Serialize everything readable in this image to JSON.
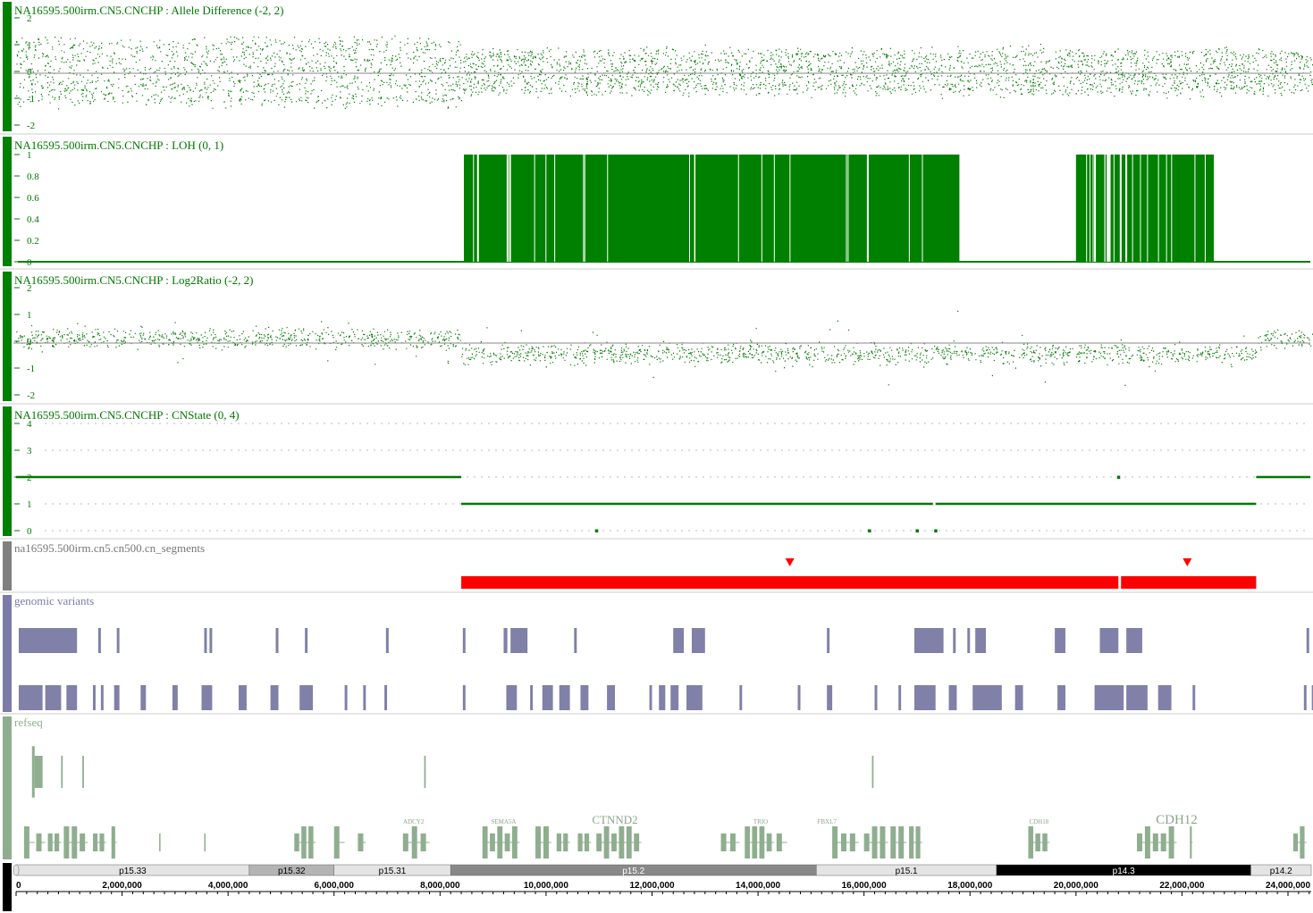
{
  "colors": {
    "data_green": "#007700",
    "bar_green": "#008000",
    "segment_red": "#ff0000",
    "variant_purple": "#8080a8",
    "refseq_green": "#8fae8f",
    "gutter_green": "#008000",
    "gutter_gray": "#808080",
    "gutter_purple": "#7b7ba8",
    "gutter_refseq": "#8fae8f"
  },
  "tracks": {
    "allele": {
      "title": "NA16595.500irm.CN5.CNCHP : Allele Difference (-2, 2)"
    },
    "loh": {
      "title": "NA16595.500irm.CN5.CNCHP : LOH (0, 1)"
    },
    "log2": {
      "title": "NA16595.500irm.CN5.CNCHP : Log2Ratio (-2, 2)"
    },
    "cnstate": {
      "title": "NA16595.500irm.CN5.CNCHP : CNState (0, 4)"
    },
    "segments": {
      "title": "na16595.500irm.cn5.cn500.cn_segments"
    },
    "variants": {
      "title": "genomic variants"
    },
    "refseq": {
      "title": "refseq"
    }
  },
  "chart_data": [
    {
      "type": "scatter",
      "title": "NA16595.500irm.CN5.CNCHP : Allele Difference (-2, 2)",
      "ylim": [
        -2,
        2
      ],
      "y_ticks": [
        "2",
        "1",
        "0",
        "-1",
        "-2"
      ],
      "reference_line": 0,
      "description_regions": [
        {
          "x_range": [
            0,
            8400000
          ],
          "bands": [
            1,
            0,
            -1
          ]
        },
        {
          "x_range": [
            8400000,
            24000000
          ],
          "bands": [
            0.6,
            -0.6
          ]
        }
      ]
    },
    {
      "type": "bar",
      "title": "NA16595.500irm.CN5.CNCHP : LOH (0, 1)",
      "ylim": [
        0,
        1
      ],
      "y_ticks": [
        "1",
        "0.8",
        "0.6",
        "0.4",
        "0.2",
        "0"
      ],
      "regions": [
        {
          "start": 8450000,
          "end": 17800000,
          "value": 1
        },
        {
          "start": 20000000,
          "end": 22600000,
          "value": 1
        }
      ]
    },
    {
      "type": "scatter",
      "title": "NA16595.500irm.CN5.CNCHP : Log2Ratio (-2, 2)",
      "ylim": [
        -2,
        2
      ],
      "y_ticks": [
        "2",
        "1",
        "0",
        "-1",
        "-2"
      ],
      "reference_line": 0,
      "description_regions": [
        {
          "x_range": [
            0,
            8400000
          ],
          "mean": 0.1
        },
        {
          "x_range": [
            8400000,
            23400000
          ],
          "mean": -0.45
        },
        {
          "x_range": [
            23400000,
            24500000
          ],
          "mean": 0.1
        }
      ]
    },
    {
      "type": "line",
      "title": "NA16595.500irm.CN5.CNCHP : CNState (0, 4)",
      "ylim": [
        0,
        4
      ],
      "y_ticks": [
        "4",
        "3",
        "2",
        "1",
        "0"
      ],
      "segments": [
        {
          "start": 0,
          "end": 8400000,
          "value": 2
        },
        {
          "start": 8400000,
          "end": 17300000,
          "value": 1
        },
        {
          "start": 17350000,
          "end": 23400000,
          "value": 1
        },
        {
          "start": 23400000,
          "end": 24500000,
          "value": 2
        }
      ],
      "isolated_points": [
        {
          "x": 20800000,
          "value": 2
        },
        {
          "x": 10950000,
          "value": 0
        },
        {
          "x": 16100000,
          "value": 0
        },
        {
          "x": 17000000,
          "value": 0
        },
        {
          "x": 17350000,
          "value": 0
        }
      ]
    }
  ],
  "segments": [
    {
      "start": 8400000,
      "end": 20800000
    },
    {
      "start": 20850000,
      "end": 23400000
    }
  ],
  "segment_markers": [
    14600000,
    22100000
  ],
  "variants_row1": [
    [
      50000,
      1150000
    ],
    [
      1550000,
      1600000
    ],
    [
      1900000,
      1950000
    ],
    [
      3550000,
      3600000
    ],
    [
      3650000,
      3700000
    ],
    [
      4900000,
      4950000
    ],
    [
      5450000,
      5500000
    ],
    [
      6980000,
      7030000
    ],
    [
      8430000,
      8480000
    ],
    [
      9200000,
      9270000
    ],
    [
      9330000,
      9650000
    ],
    [
      10530000,
      10580000
    ],
    [
      12400000,
      12600000
    ],
    [
      12750000,
      13000000
    ],
    [
      15300000,
      15350000
    ],
    [
      16950000,
      17500000
    ],
    [
      17680000,
      17730000
    ],
    [
      17950000,
      18000000
    ],
    [
      18100000,
      18300000
    ],
    [
      19600000,
      19800000
    ],
    [
      20450000,
      20800000
    ],
    [
      20950000,
      21250000
    ],
    [
      24350000,
      24400000
    ]
  ],
  "variants_row2": [
    [
      50000,
      500000
    ],
    [
      550000,
      850000
    ],
    [
      950000,
      1150000
    ],
    [
      1450000,
      1500000
    ],
    [
      1600000,
      1650000
    ],
    [
      1850000,
      1950000
    ],
    [
      2350000,
      2450000
    ],
    [
      2950000,
      3050000
    ],
    [
      3500000,
      3700000
    ],
    [
      4200000,
      4350000
    ],
    [
      4800000,
      4950000
    ],
    [
      5350000,
      5600000
    ],
    [
      6200000,
      6250000
    ],
    [
      6550000,
      6600000
    ],
    [
      6950000,
      7000000
    ],
    [
      8430000,
      8480000
    ],
    [
      9250000,
      9450000
    ],
    [
      9700000,
      9750000
    ],
    [
      9930000,
      10130000
    ],
    [
      10250000,
      10450000
    ],
    [
      10650000,
      10800000
    ],
    [
      11150000,
      11300000
    ],
    [
      11950000,
      12000000
    ],
    [
      12130000,
      12250000
    ],
    [
      12350000,
      12500000
    ],
    [
      12650000,
      12950000
    ],
    [
      13650000,
      13700000
    ],
    [
      14750000,
      14800000
    ],
    [
      15300000,
      15400000
    ],
    [
      16200000,
      16250000
    ],
    [
      16650000,
      16700000
    ],
    [
      16950000,
      17350000
    ],
    [
      17600000,
      17750000
    ],
    [
      18050000,
      18600000
    ],
    [
      18850000,
      19000000
    ],
    [
      19650000,
      19800000
    ],
    [
      20350000,
      20900000
    ],
    [
      20950000,
      21350000
    ],
    [
      21550000,
      21800000
    ],
    [
      22200000,
      22250000
    ],
    [
      24300000,
      24350000
    ],
    [
      24450000,
      24500000
    ]
  ],
  "refseq_row1": [
    [
      300000,
      350000,
      1.6
    ],
    [
      350000,
      500000,
      1.0
    ],
    [
      850000,
      880000,
      1.0
    ],
    [
      1250000,
      1280000,
      1.0
    ],
    [
      7700000,
      7730000,
      1.0
    ],
    [
      16150000,
      16180000,
      1.0
    ]
  ],
  "refseq_row2": [
    [
      150000,
      350000
    ],
    [
      380000,
      550000
    ],
    [
      600000,
      850000
    ],
    [
      900000,
      1350000
    ],
    [
      1450000,
      1700000
    ],
    [
      1800000,
      1900000
    ],
    [
      2700000,
      2720000
    ],
    [
      3550000,
      3570000
    ],
    [
      5250000,
      5650000
    ],
    [
      6000000,
      6200000
    ],
    [
      6450000,
      6600000
    ],
    [
      7300000,
      7800000
    ],
    [
      8800000,
      9500000
    ],
    [
      9800000,
      10100000
    ],
    [
      10200000,
      10450000
    ],
    [
      10600000,
      10850000
    ],
    [
      10950000,
      11800000
    ],
    [
      13300000,
      13650000
    ],
    [
      13750000,
      14300000
    ],
    [
      14350000,
      14550000
    ],
    [
      15400000,
      15900000
    ],
    [
      16000000,
      16450000
    ],
    [
      16500000,
      16800000
    ],
    [
      16850000,
      17100000
    ],
    [
      19100000,
      19500000
    ],
    [
      21150000,
      21900000
    ],
    [
      22150000,
      22200000
    ],
    [
      24100000,
      24350000
    ]
  ],
  "gene_labels": [
    {
      "text": "ADCY2",
      "x": 7500000,
      "size": 7
    },
    {
      "text": "SEMA5A",
      "x": 9200000,
      "size": 7
    },
    {
      "text": "CTNND2",
      "x": 11300000,
      "size": 13
    },
    {
      "text": "TRIO",
      "x": 14050000,
      "size": 7
    },
    {
      "text": "FBXL7",
      "x": 15300000,
      "size": 7
    },
    {
      "text": "CDH18",
      "x": 19300000,
      "size": 7
    },
    {
      "text": "CDH12",
      "x": 21900000,
      "size": 15
    }
  ],
  "cytobands": [
    {
      "name": "p15.33",
      "start": 0,
      "end": 4400000,
      "fill": "#e4e4e4",
      "text": "#000000"
    },
    {
      "name": "p15.32",
      "start": 4400000,
      "end": 6000000,
      "fill": "#b4b4b4",
      "text": "#000000"
    },
    {
      "name": "p15.31",
      "start": 6000000,
      "end": 8200000,
      "fill": "#e4e4e4",
      "text": "#000000"
    },
    {
      "name": "p15.2",
      "start": 8200000,
      "end": 15100000,
      "fill": "#888888",
      "text": "#ffffff"
    },
    {
      "name": "p15.1",
      "start": 15100000,
      "end": 18500000,
      "fill": "#e4e4e4",
      "text": "#000000"
    },
    {
      "name": "p14.3",
      "start": 18500000,
      "end": 23300000,
      "fill": "#000000",
      "text": "#ffffff"
    },
    {
      "name": "p14.2",
      "start": 23300000,
      "end": 24600000,
      "fill": "#e4e4e4",
      "text": "#000000"
    }
  ],
  "ruler": {
    "labels": [
      "0",
      "2,000,000",
      "4,000,000",
      "6,000,000",
      "8,000,000",
      "10,000,000",
      "12,000,000",
      "14,000,000",
      "16,000,000",
      "18,000,000",
      "20,000,000",
      "22,000,000",
      "24,000,000"
    ],
    "major_step": 2000000,
    "minor_step": 200000,
    "max": 24600000
  }
}
